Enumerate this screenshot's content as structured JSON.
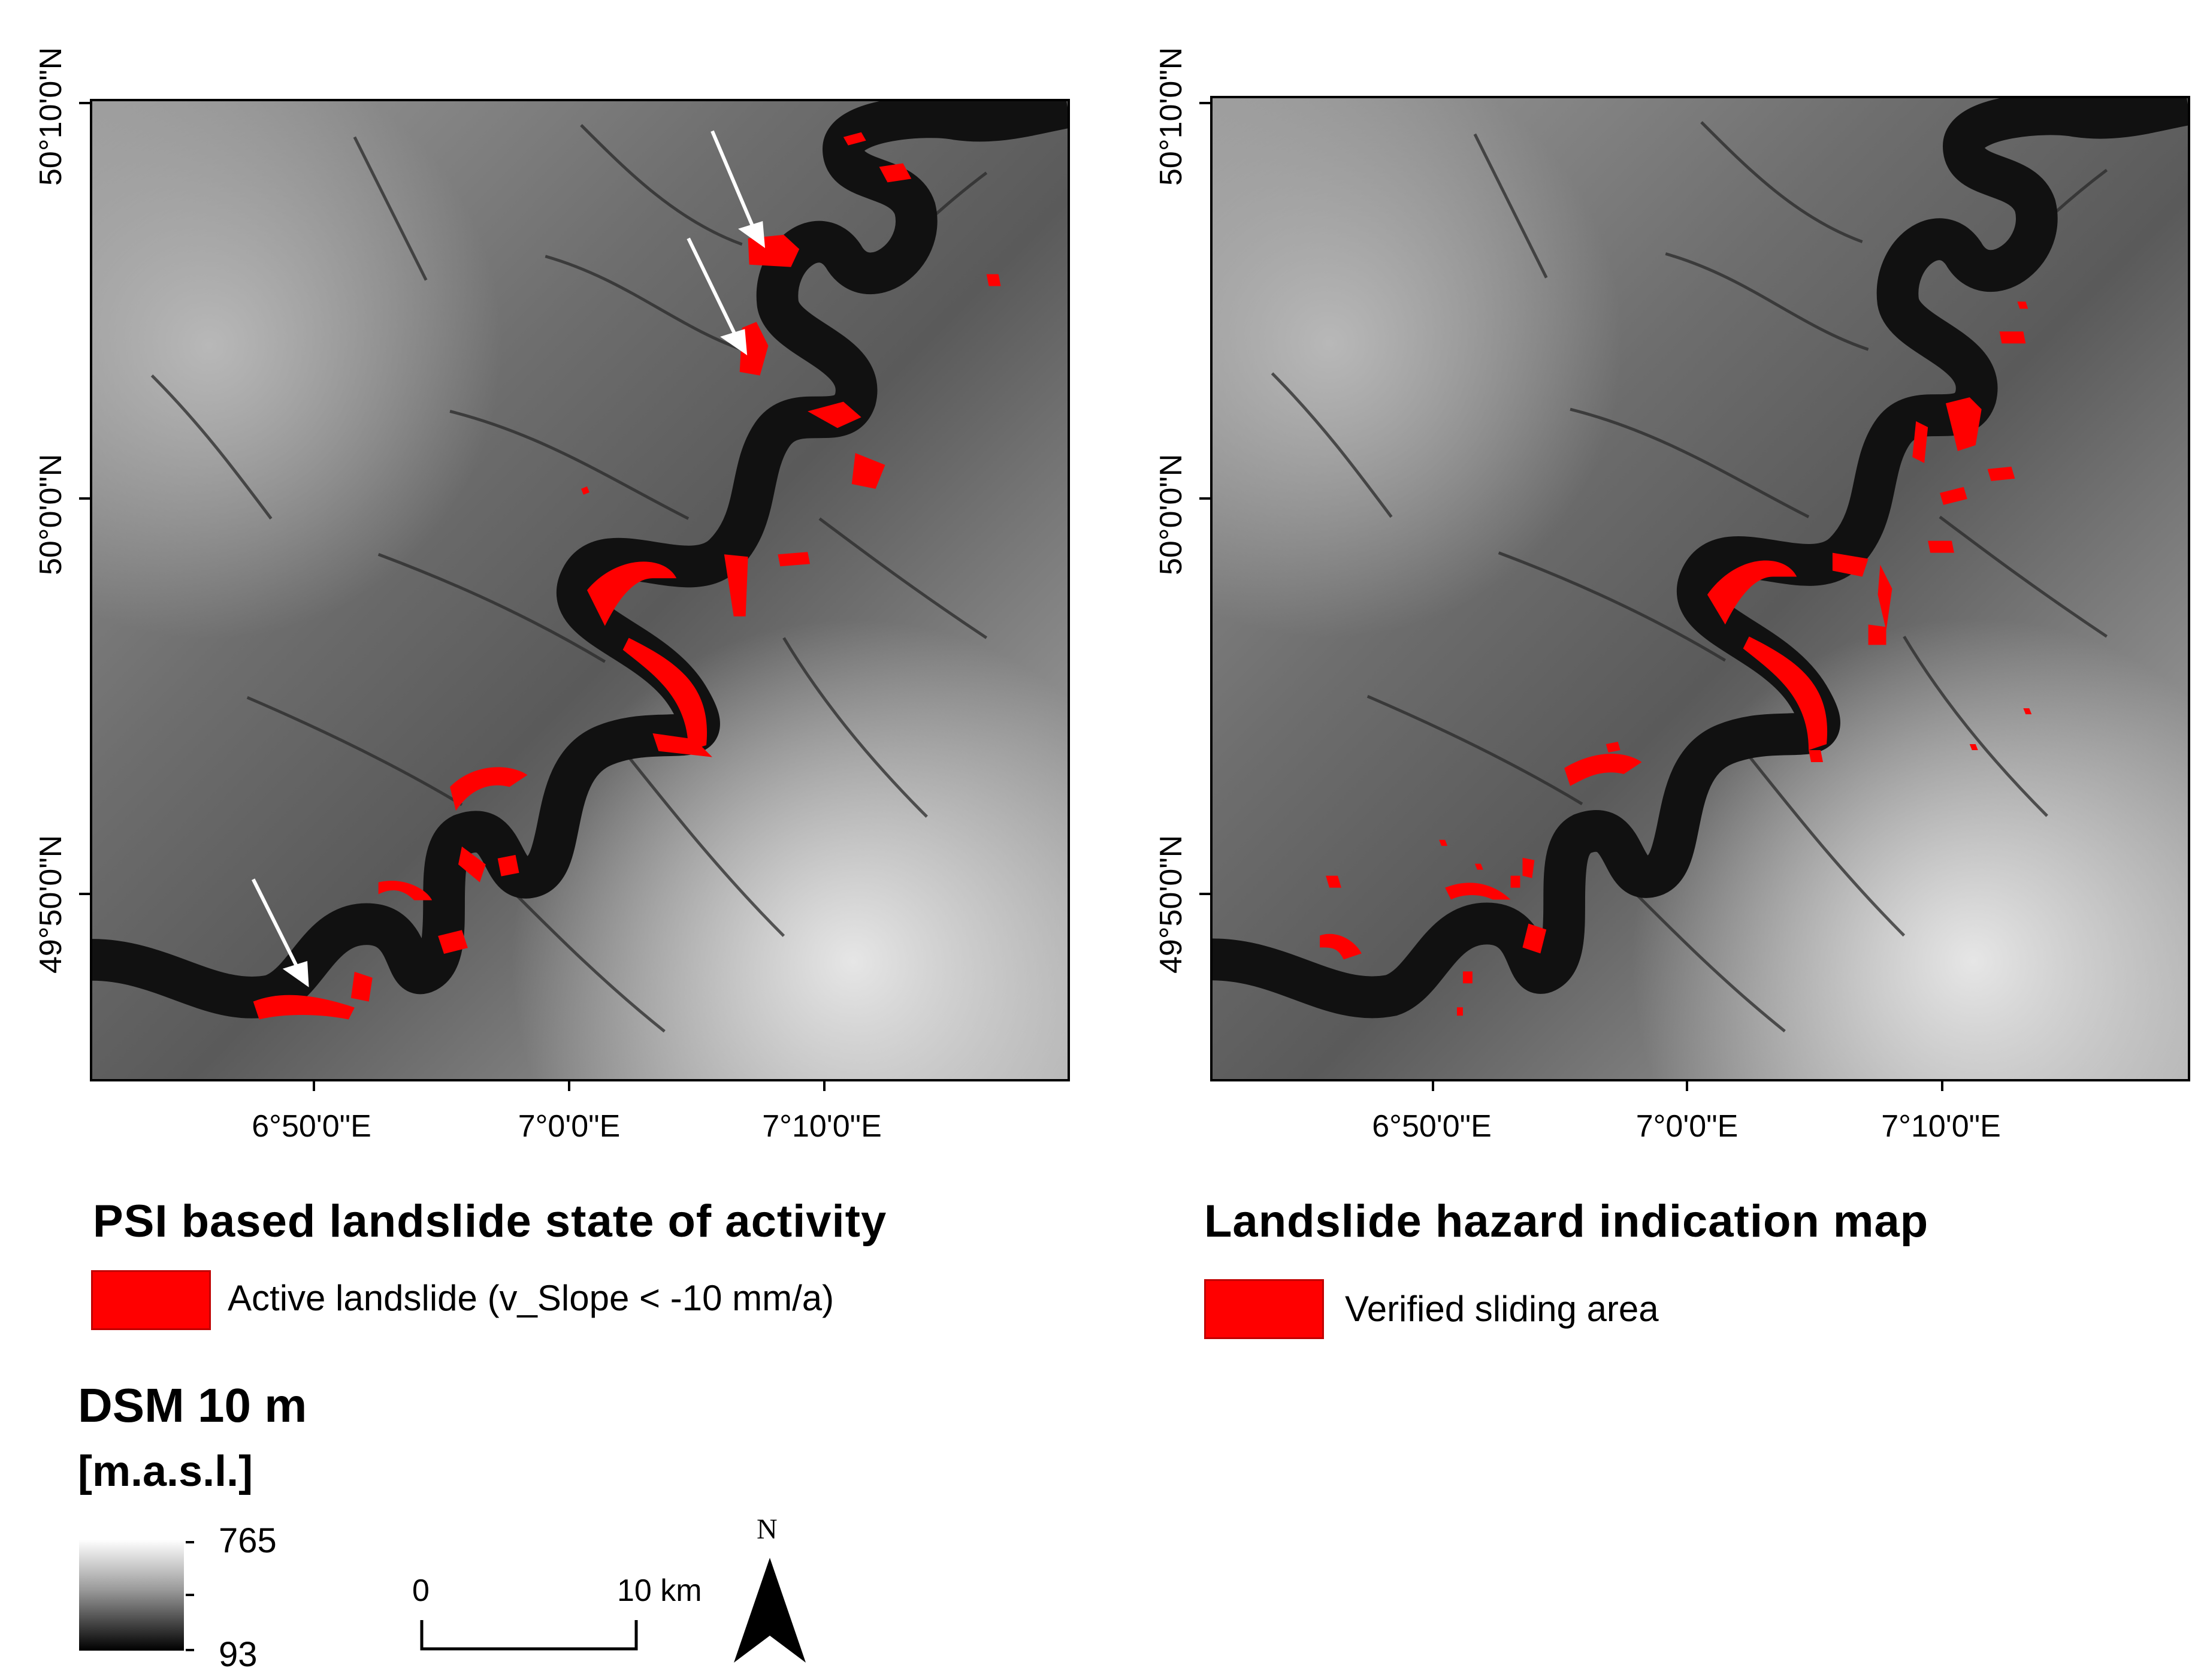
{
  "left_map": {
    "lat_labels": [
      "50°10'0\"N",
      "50°0'0\"N",
      "49°50'0\"N"
    ],
    "lon_labels": [
      "6°50'0\"E",
      "7°0'0\"E",
      "7°10'0\"E"
    ],
    "legend_title": "PSI based landslide state of activity",
    "legend_item": "Active landslide (v_Slope < -10 mm/a)",
    "arrow_count": 3
  },
  "right_map": {
    "lat_labels": [
      "50°10'0\"N",
      "50°0'0\"N",
      "49°50'0\"N"
    ],
    "lon_labels": [
      "6°50'0\"E",
      "7°0'0\"E",
      "7°10'0\"E"
    ],
    "legend_title": "Landslide hazard indication map",
    "legend_item": "Verified sliding area"
  },
  "dsm_legend": {
    "title": "DSM 10 m",
    "unit": "[m.a.s.l.]",
    "max": "765",
    "min": "93"
  },
  "scale_bar": {
    "start": "0",
    "end": "10 km"
  },
  "north_arrow": {
    "label": "N"
  },
  "colors": {
    "landslide": "#ff0000",
    "frame": "#000000"
  }
}
